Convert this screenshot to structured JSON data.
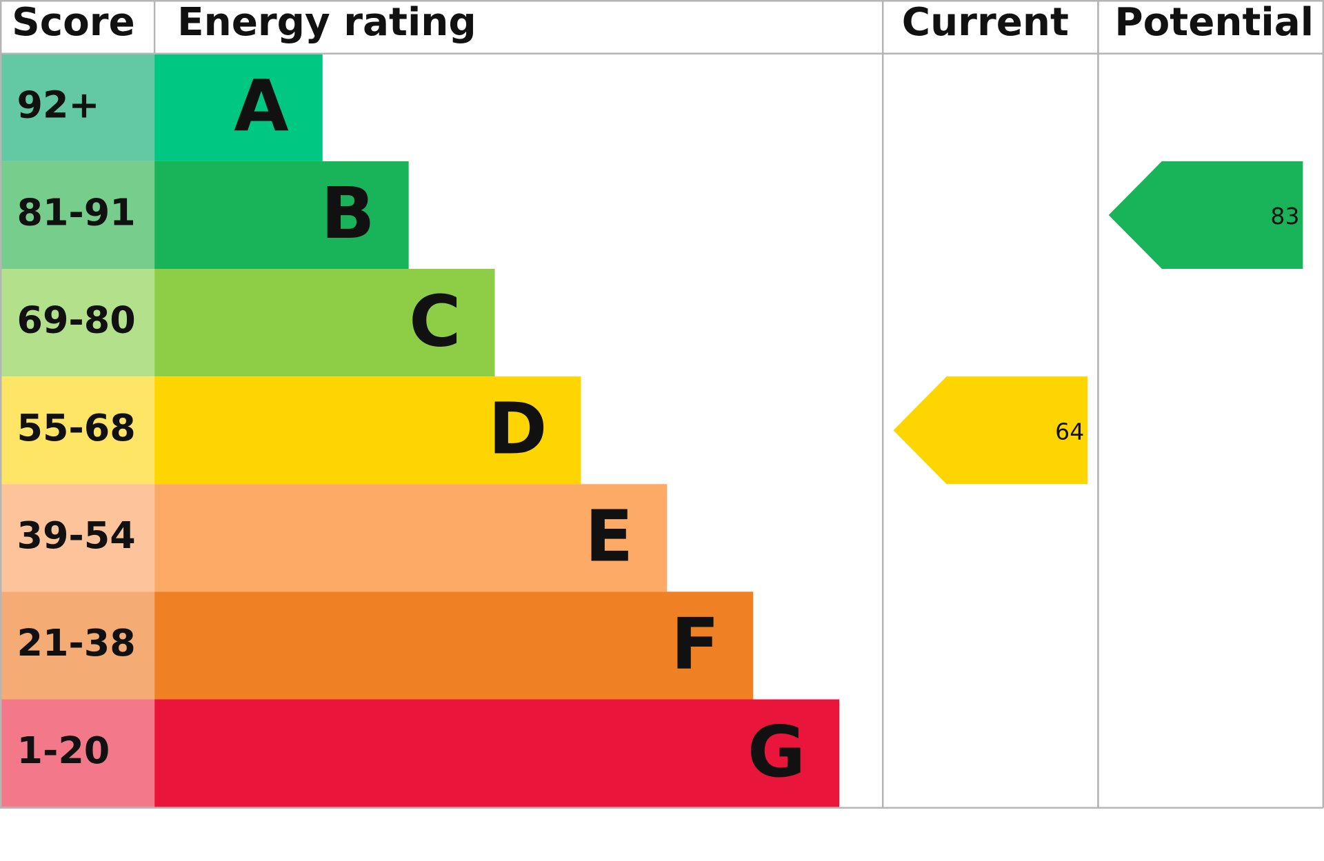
{
  "headers": {
    "score": "Score",
    "rating": "Energy rating",
    "current": "Current",
    "potential": "Potential"
  },
  "bands": [
    {
      "score": "92+",
      "letter": "A",
      "score_color": "#63c9a4",
      "color": "#00c781"
    },
    {
      "score": "81-91",
      "letter": "B",
      "score_color": "#77ce8c",
      "color": "#19b459"
    },
    {
      "score": "69-80",
      "letter": "C",
      "score_color": "#b3e08a",
      "color": "#8dce46"
    },
    {
      "score": "55-68",
      "letter": "D",
      "score_color": "#ffe566",
      "color": "#ffd500"
    },
    {
      "score": "39-54",
      "letter": "E",
      "score_color": "#fdc49b",
      "color": "#fcaa65"
    },
    {
      "score": "21-38",
      "letter": "F",
      "score_color": "#f4ac74",
      "color": "#ef8023"
    },
    {
      "score": "1-20",
      "letter": "G",
      "score_color": "#f2788a",
      "color": "#e9153b"
    }
  ],
  "current": {
    "value": 64
  },
  "potential": {
    "value": 83
  }
}
